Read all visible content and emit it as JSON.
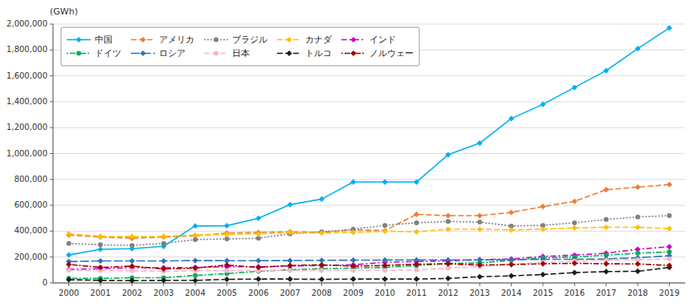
{
  "chart_data": {
    "type": "line",
    "y_label": "(GWh)",
    "x": [
      2000,
      2001,
      2002,
      2003,
      2004,
      2005,
      2006,
      2007,
      2008,
      2009,
      2010,
      2011,
      2012,
      2013,
      2014,
      2015,
      2016,
      2017,
      2018,
      2019
    ],
    "xlim": [
      1999.5,
      2019.5
    ],
    "xticks": [
      2000,
      2001,
      2002,
      2003,
      2004,
      2005,
      2006,
      2007,
      2008,
      2009,
      2010,
      2011,
      2012,
      2013,
      2014,
      2015,
      2016,
      2017,
      2018,
      2019
    ],
    "ylim": [
      0,
      2000000
    ],
    "yticks": [
      0,
      {
        "value": 200000,
        "label": "200,000"
      },
      {
        "value": 400000,
        "label": "400,000"
      },
      {
        "value": 600000,
        "label": "600,000"
      },
      {
        "value": 800000,
        "label": "800,000"
      },
      {
        "value": 1000000,
        "label": "1,000,000"
      },
      {
        "value": 1200000,
        "label": "1,200,000"
      },
      {
        "value": 1400000,
        "label": "1,400,000"
      },
      {
        "value": 1600000,
        "label": "1,600,000"
      },
      {
        "value": 1800000,
        "label": "1,800,000"
      },
      {
        "value": 2000000,
        "label": "2,000,000"
      }
    ],
    "grid": true,
    "legend": "upper left",
    "series": [
      {
        "name": "中国",
        "color": "#00b0f0",
        "line_style": "solid",
        "marker": "diamond",
        "values": [
          216000,
          260000,
          265000,
          283000,
          440000,
          442000,
          500000,
          605000,
          648000,
          780000,
          780000,
          780000,
          990000,
          1080000,
          1270000,
          1380000,
          1510000,
          1640000,
          1810000,
          1970000
        ]
      },
      {
        "name": "アメリカ",
        "color": "#ed7d31",
        "line_style": "dashed",
        "marker": "diamond",
        "values": [
          370000,
          355000,
          345000,
          355000,
          365000,
          385000,
          390000,
          395000,
          390000,
          410000,
          405000,
          530000,
          520000,
          520000,
          545000,
          590000,
          630000,
          720000,
          740000,
          760000
        ]
      },
      {
        "name": "ブラジル",
        "color": "#808080",
        "line_style": "dotted",
        "marker": "circle",
        "values": [
          305000,
          295000,
          290000,
          305000,
          335000,
          340000,
          345000,
          380000,
          395000,
          415000,
          445000,
          465000,
          475000,
          470000,
          440000,
          445000,
          465000,
          490000,
          510000,
          520000
        ]
      },
      {
        "name": "カナダ",
        "color": "#ffc000",
        "line_style": "dashed",
        "marker": "diamond",
        "values": [
          380000,
          360000,
          358000,
          360000,
          370000,
          375000,
          380000,
          390000,
          385000,
          390000,
          400000,
          395000,
          415000,
          415000,
          410000,
          415000,
          425000,
          430000,
          430000,
          420000
        ]
      },
      {
        "name": "インド",
        "color": "#cc00cc",
        "line_style": "dashdot",
        "marker": "diamond",
        "values": [
          105000,
          110000,
          118000,
          118000,
          120000,
          125000,
          125000,
          130000,
          135000,
          140000,
          160000,
          165000,
          170000,
          180000,
          185000,
          205000,
          215000,
          230000,
          260000,
          280000
        ]
      },
      {
        "name": "ドイツ",
        "color": "#00b050",
        "line_style": "dotdash",
        "marker": "circle",
        "values": [
          35000,
          35000,
          40000,
          40000,
          58000,
          72000,
          90000,
          102000,
          110000,
          115000,
          120000,
          135000,
          150000,
          155000,
          175000,
          195000,
          200000,
          215000,
          230000,
          240000
        ]
      },
      {
        "name": "ロシア",
        "color": "#2e75b6",
        "line_style": "longdash",
        "marker": "diamond",
        "values": [
          165000,
          170000,
          170000,
          170000,
          173000,
          172000,
          172000,
          173000,
          175000,
          176000,
          177000,
          178000,
          178000,
          178000,
          180000,
          182000,
          183000,
          185000,
          195000,
          210000
        ]
      },
      {
        "name": "日本",
        "color": "#f4b8c8",
        "line_style": "dashed",
        "marker": "circle",
        "values": [
          97000,
          96000,
          94000,
          90000,
          95000,
          95000,
          95000,
          96000,
          96000,
          98000,
          97000,
          100000,
          115000,
          125000,
          145000,
          160000,
          168000,
          175000,
          180000,
          185000
        ]
      },
      {
        "name": "トルコ",
        "color": "#1a1a1a",
        "line_style": "dashed",
        "marker": "diamond",
        "values": [
          25000,
          20000,
          18000,
          20000,
          20000,
          28000,
          30000,
          30000,
          28000,
          30000,
          30000,
          30000,
          35000,
          48000,
          55000,
          65000,
          80000,
          88000,
          90000,
          120000
        ]
      },
      {
        "name": "ノルウェー",
        "color": "#a00000",
        "line_style": "dotdash",
        "marker": "diamond",
        "values": [
          143000,
          120000,
          130000,
          108000,
          115000,
          138000,
          120000,
          135000,
          140000,
          130000,
          135000,
          145000,
          148000,
          138000,
          142000,
          148000,
          152000,
          148000,
          147000,
          135000
        ]
      }
    ]
  }
}
